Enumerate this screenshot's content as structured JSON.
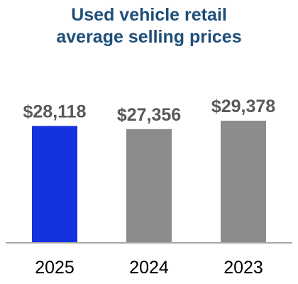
{
  "chart_data": {
    "type": "bar",
    "title_lines": [
      "Used vehicle retail",
      "average selling prices"
    ],
    "categories": [
      "2025",
      "2024",
      "2023"
    ],
    "values": [
      28118,
      27356,
      29378
    ],
    "value_labels": [
      "$28,118",
      "$27,356",
      "$29,378"
    ],
    "bar_colors": [
      "#1432e0",
      "#8c8c8c",
      "#8c8c8c"
    ],
    "title_color": "#1f4e79",
    "label_color": "#595959",
    "axis_color": "#a6a6a6",
    "ylim": [
      0,
      33000
    ],
    "grid": false,
    "legend": "none"
  }
}
